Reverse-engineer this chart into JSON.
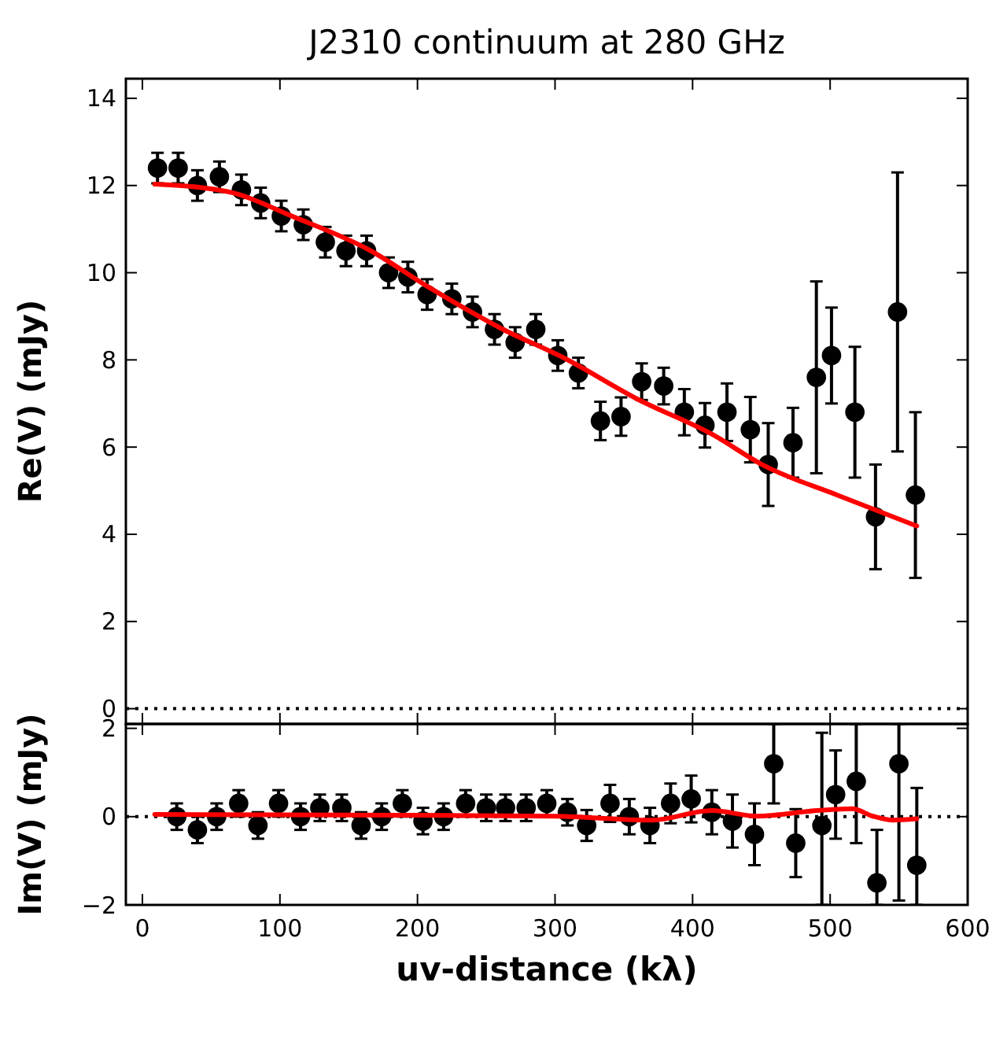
{
  "chart_data": [
    {
      "type": "scatter",
      "title": "J2310 continuum at 280 GHz",
      "ylabel": "Re(V) (mJy)",
      "xlim": [
        -12,
        600
      ],
      "xticks": [
        0,
        100,
        200,
        300,
        400,
        500,
        600
      ],
      "ylim": [
        -0.35,
        14.45
      ],
      "yticks": [
        0,
        2,
        4,
        6,
        8,
        10,
        12,
        14
      ],
      "tick_labels": "y",
      "ref_lines": [
        {
          "axis": "y",
          "value": 0,
          "line_style": "dotted",
          "color": "#000000"
        }
      ],
      "series": [
        {
          "type": "scatter",
          "marker": "circle",
          "color": "#000000",
          "x": [
            11,
            26,
            40,
            56,
            72,
            86,
            101,
            117,
            133,
            148,
            163,
            179,
            193,
            207,
            225,
            240,
            256,
            271,
            286,
            302,
            317,
            333,
            348,
            363,
            379,
            394,
            409,
            425,
            442,
            455,
            473,
            490,
            501,
            518,
            533,
            549,
            562
          ],
          "values": [
            12.4,
            12.4,
            12.0,
            12.2,
            11.9,
            11.6,
            11.3,
            11.1,
            10.7,
            10.5,
            10.5,
            10.0,
            9.9,
            9.5,
            9.4,
            9.1,
            8.7,
            8.4,
            8.7,
            8.1,
            7.7,
            6.6,
            6.7,
            7.5,
            7.4,
            6.8,
            6.5,
            6.8,
            6.4,
            5.6,
            6.1,
            7.6,
            8.1,
            6.8,
            4.4,
            9.1,
            4.9
          ],
          "errors": [
            0.35,
            0.35,
            0.35,
            0.35,
            0.35,
            0.35,
            0.35,
            0.35,
            0.35,
            0.35,
            0.35,
            0.35,
            0.35,
            0.35,
            0.35,
            0.35,
            0.35,
            0.35,
            0.35,
            0.35,
            0.35,
            0.44,
            0.44,
            0.42,
            0.42,
            0.53,
            0.51,
            0.66,
            0.75,
            0.95,
            0.8,
            2.2,
            1.1,
            1.5,
            1.2,
            3.2,
            1.9
          ]
        },
        {
          "type": "line",
          "color": "#ff0000",
          "line_style": "solid",
          "x": [
            9,
            62,
            110,
            165,
            209,
            261,
            308,
            360,
            415,
            451,
            506,
            563
          ],
          "values": [
            12.03,
            11.86,
            11.28,
            10.52,
            9.65,
            8.72,
            8.02,
            7.1,
            6.28,
            5.59,
            4.89,
            4.19
          ]
        }
      ]
    },
    {
      "type": "scatter",
      "ylabel": "Im(V) (mJy)",
      "xlabel": "uv-distance (kλ)",
      "xlim": [
        -12,
        600
      ],
      "xticks": [
        0,
        100,
        200,
        300,
        400,
        500,
        600
      ],
      "ylim": [
        -2,
        2.1
      ],
      "yticks": [
        {
          "value": -2,
          "label": "−2"
        },
        0,
        2
      ],
      "ref_lines": [
        {
          "axis": "y",
          "value": 0,
          "line_style": "dotted",
          "color": "#000000"
        }
      ],
      "series": [
        {
          "type": "scatter",
          "marker": "circle",
          "color": "#000000",
          "x": [
            25,
            40,
            54,
            70,
            84,
            99,
            115,
            129,
            145,
            159,
            174,
            189,
            204,
            219,
            235,
            250,
            264,
            279,
            294,
            309,
            323,
            340,
            354,
            369,
            384,
            399,
            414,
            429,
            445,
            459,
            475,
            494,
            504,
            519,
            534,
            550,
            563
          ],
          "values": [
            0.0,
            -0.3,
            0.0,
            0.3,
            -0.2,
            0.3,
            0.0,
            0.2,
            0.2,
            -0.2,
            0.0,
            0.3,
            -0.1,
            0.0,
            0.3,
            0.2,
            0.2,
            0.2,
            0.3,
            0.1,
            -0.2,
            0.3,
            0.0,
            -0.2,
            0.3,
            0.4,
            0.1,
            -0.1,
            -0.4,
            1.2,
            -0.6,
            -0.2,
            0.5,
            0.8,
            -1.5,
            1.2,
            -1.1
          ],
          "errors": [
            0.3,
            0.3,
            0.3,
            0.3,
            0.3,
            0.3,
            0.3,
            0.3,
            0.3,
            0.3,
            0.3,
            0.3,
            0.3,
            0.3,
            0.3,
            0.3,
            0.3,
            0.3,
            0.3,
            0.3,
            0.35,
            0.42,
            0.4,
            0.4,
            0.45,
            0.53,
            0.5,
            0.6,
            0.7,
            0.9,
            0.77,
            [
              -2.0,
              1.9
            ],
            1.0,
            [
              -0.6,
              2.1
            ],
            [
              -2.0,
              -0.3
            ],
            [
              -1.9,
              2.1
            ],
            [
              -2.0,
              0.65
            ]
          ]
        },
        {
          "type": "line",
          "color": "#ff0000",
          "line_style": "solid",
          "x": [
            9,
            100,
            200,
            300,
            370,
            414,
            447,
            491,
            516,
            531,
            546,
            563
          ],
          "values": [
            0.05,
            0.04,
            0.03,
            0.01,
            -0.08,
            0.14,
            0.01,
            0.14,
            0.18,
            0.01,
            -0.08,
            -0.05
          ]
        }
      ]
    }
  ]
}
